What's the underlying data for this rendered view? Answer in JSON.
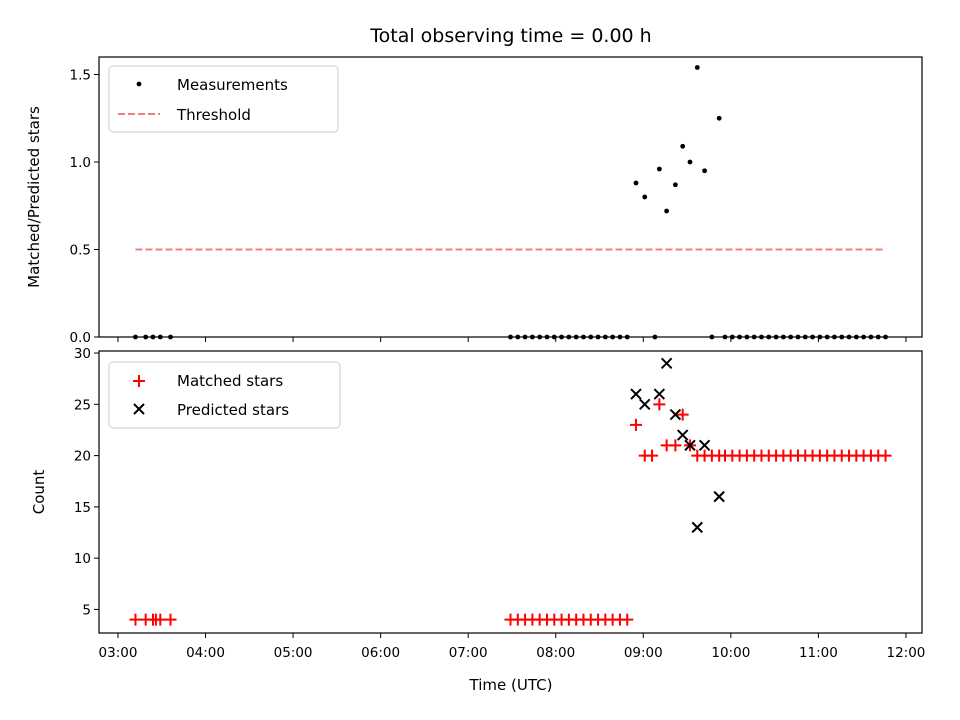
{
  "chart_data": [
    {
      "type": "scatter",
      "title": "Total observing time = 0.00 h",
      "ylabel": "Matched/Predicted stars",
      "ylim": [
        0,
        1.6
      ],
      "yticks": [
        0,
        0.5,
        1.0,
        1.5
      ],
      "ytick_labels": [
        "0.0",
        "0.5",
        "1.0",
        "1.5"
      ],
      "xlim": [
        "02:47",
        "12:11"
      ],
      "series": [
        {
          "name": "Measurements",
          "kind": "scatter",
          "marker": "dot",
          "color": "#000000",
          "points": [
            [
              "03:12",
              0
            ],
            [
              "03:19",
              0
            ],
            [
              "03:24",
              0
            ],
            [
              "03:29",
              0
            ],
            [
              "03:36",
              0
            ],
            [
              "07:29",
              0
            ],
            [
              "07:34",
              0
            ],
            [
              "07:39",
              0
            ],
            [
              "07:44",
              0
            ],
            [
              "07:49",
              0
            ],
            [
              "07:54",
              0
            ],
            [
              "07:59",
              0
            ],
            [
              "08:04",
              0
            ],
            [
              "08:09",
              0
            ],
            [
              "08:14",
              0
            ],
            [
              "08:19",
              0
            ],
            [
              "08:24",
              0
            ],
            [
              "08:29",
              0
            ],
            [
              "08:34",
              0
            ],
            [
              "08:39",
              0
            ],
            [
              "08:44",
              0
            ],
            [
              "08:49",
              0
            ],
            [
              "08:55",
              0.88
            ],
            [
              "09:01",
              0.8
            ],
            [
              "09:08",
              0
            ],
            [
              "09:11",
              0.96
            ],
            [
              "09:16",
              0.72
            ],
            [
              "09:22",
              0.87
            ],
            [
              "09:27",
              1.09
            ],
            [
              "09:32",
              1.0
            ],
            [
              "09:37",
              1.54
            ],
            [
              "09:42",
              0.95
            ],
            [
              "09:47",
              0
            ],
            [
              "09:52",
              1.25
            ],
            [
              "09:56",
              0
            ],
            [
              "10:01",
              0
            ],
            [
              "10:06",
              0
            ],
            [
              "10:11",
              0
            ],
            [
              "10:16",
              0
            ],
            [
              "10:21",
              0
            ],
            [
              "10:26",
              0
            ],
            [
              "10:31",
              0
            ],
            [
              "10:36",
              0
            ],
            [
              "10:41",
              0
            ],
            [
              "10:46",
              0
            ],
            [
              "10:51",
              0
            ],
            [
              "10:56",
              0
            ],
            [
              "11:01",
              0
            ],
            [
              "11:06",
              0
            ],
            [
              "11:11",
              0
            ],
            [
              "11:16",
              0
            ],
            [
              "11:21",
              0
            ],
            [
              "11:26",
              0
            ],
            [
              "11:31",
              0
            ],
            [
              "11:36",
              0
            ],
            [
              "11:41",
              0
            ],
            [
              "11:46",
              0
            ]
          ]
        },
        {
          "name": "Threshold",
          "kind": "line",
          "style": "dashed",
          "color": "#f08080",
          "points": [
            [
              "03:12",
              0.5
            ],
            [
              "11:46",
              0.5
            ]
          ]
        }
      ],
      "legend_position": "top-left",
      "grid": false
    },
    {
      "type": "scatter",
      "xlabel": "Time (UTC)",
      "ylabel": "Count",
      "ylim": [
        2.7,
        30.2
      ],
      "yticks": [
        5,
        10,
        15,
        20,
        25,
        30
      ],
      "ytick_labels": [
        "5",
        "10",
        "15",
        "20",
        "25",
        "30"
      ],
      "xlim": [
        "02:47",
        "12:11"
      ],
      "xticks": [
        "03:00",
        "04:00",
        "05:00",
        "06:00",
        "07:00",
        "08:00",
        "09:00",
        "10:00",
        "11:00",
        "12:00"
      ],
      "series": [
        {
          "name": "Matched stars",
          "kind": "scatter",
          "marker": "plus",
          "color": "#ff0000",
          "points": [
            [
              "03:12",
              4
            ],
            [
              "03:19",
              4
            ],
            [
              "03:24",
              4
            ],
            [
              "03:26",
              4
            ],
            [
              "03:29",
              4
            ],
            [
              "03:36",
              4
            ],
            [
              "07:29",
              4
            ],
            [
              "07:34",
              4
            ],
            [
              "07:39",
              4
            ],
            [
              "07:44",
              4
            ],
            [
              "07:49",
              4
            ],
            [
              "07:54",
              4
            ],
            [
              "07:59",
              4
            ],
            [
              "08:04",
              4
            ],
            [
              "08:09",
              4
            ],
            [
              "08:14",
              4
            ],
            [
              "08:19",
              4
            ],
            [
              "08:24",
              4
            ],
            [
              "08:29",
              4
            ],
            [
              "08:34",
              4
            ],
            [
              "08:39",
              4
            ],
            [
              "08:44",
              4
            ],
            [
              "08:49",
              4
            ],
            [
              "08:55",
              23
            ],
            [
              "09:01",
              20
            ],
            [
              "09:06",
              20
            ],
            [
              "09:11",
              25
            ],
            [
              "09:16",
              21
            ],
            [
              "09:22",
              21
            ],
            [
              "09:27",
              24
            ],
            [
              "09:32",
              21
            ],
            [
              "09:37",
              20
            ],
            [
              "09:42",
              20
            ],
            [
              "09:47",
              20
            ],
            [
              "09:52",
              20
            ],
            [
              "09:56",
              20
            ],
            [
              "10:01",
              20
            ],
            [
              "10:06",
              20
            ],
            [
              "10:11",
              20
            ],
            [
              "10:16",
              20
            ],
            [
              "10:21",
              20
            ],
            [
              "10:26",
              20
            ],
            [
              "10:31",
              20
            ],
            [
              "10:36",
              20
            ],
            [
              "10:41",
              20
            ],
            [
              "10:46",
              20
            ],
            [
              "10:51",
              20
            ],
            [
              "10:56",
              20
            ],
            [
              "11:01",
              20
            ],
            [
              "11:06",
              20
            ],
            [
              "11:11",
              20
            ],
            [
              "11:16",
              20
            ],
            [
              "11:21",
              20
            ],
            [
              "11:26",
              20
            ],
            [
              "11:31",
              20
            ],
            [
              "11:36",
              20
            ],
            [
              "11:41",
              20
            ],
            [
              "11:46",
              20
            ]
          ]
        },
        {
          "name": "Predicted stars",
          "kind": "scatter",
          "marker": "x",
          "color": "#000000",
          "points": [
            [
              "08:55",
              26
            ],
            [
              "09:01",
              25
            ],
            [
              "09:11",
              26
            ],
            [
              "09:16",
              29
            ],
            [
              "09:22",
              24
            ],
            [
              "09:27",
              22
            ],
            [
              "09:32",
              21
            ],
            [
              "09:37",
              13
            ],
            [
              "09:42",
              21
            ],
            [
              "09:52",
              16
            ]
          ]
        }
      ],
      "legend_position": "top-left",
      "grid": false
    }
  ]
}
